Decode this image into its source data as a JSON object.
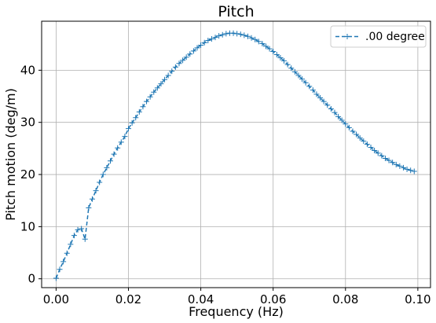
{
  "chart_data": {
    "type": "line",
    "title": "Pitch",
    "xlabel": "Frequency (Hz)",
    "ylabel": "Pitch motion (deg/m)",
    "xlim": [
      -0.004,
      0.1035
    ],
    "ylim": [
      -1.7,
      49.4
    ],
    "x_ticks": [
      0.0,
      0.02,
      0.04,
      0.06,
      0.08,
      0.1
    ],
    "x_tick_labels": [
      "0.00",
      "0.02",
      "0.04",
      "0.06",
      "0.08",
      "0.10"
    ],
    "y_ticks": [
      0,
      10,
      20,
      30,
      40
    ],
    "y_tick_labels": [
      "0",
      "10",
      "20",
      "30",
      "40"
    ],
    "grid": true,
    "legend_position": "top-right",
    "series": [
      {
        "name": ".00 degree",
        "color": "#1f77b4",
        "line_style": "dashed",
        "marker": "plus",
        "x": [
          0.0,
          0.001,
          0.002,
          0.003,
          0.004,
          0.005,
          0.006,
          0.007,
          0.008,
          0.009,
          0.01,
          0.011,
          0.012,
          0.013,
          0.014,
          0.015,
          0.016,
          0.017,
          0.018,
          0.019,
          0.02,
          0.021,
          0.022,
          0.023,
          0.024,
          0.025,
          0.026,
          0.027,
          0.028,
          0.029,
          0.03,
          0.031,
          0.032,
          0.033,
          0.034,
          0.035,
          0.036,
          0.037,
          0.038,
          0.039,
          0.04,
          0.041,
          0.042,
          0.043,
          0.044,
          0.045,
          0.046,
          0.047,
          0.048,
          0.049,
          0.05,
          0.051,
          0.052,
          0.053,
          0.054,
          0.055,
          0.056,
          0.057,
          0.058,
          0.059,
          0.06,
          0.061,
          0.062,
          0.063,
          0.064,
          0.065,
          0.066,
          0.067,
          0.068,
          0.069,
          0.07,
          0.071,
          0.072,
          0.073,
          0.074,
          0.075,
          0.076,
          0.077,
          0.078,
          0.079,
          0.08,
          0.081,
          0.082,
          0.083,
          0.084,
          0.085,
          0.086,
          0.087,
          0.088,
          0.089,
          0.09,
          0.091,
          0.092,
          0.093,
          0.094,
          0.095,
          0.096,
          0.097,
          0.098,
          0.099
        ],
        "y": [
          0.1,
          1.8,
          3.3,
          4.9,
          6.6,
          8.3,
          9.4,
          9.6,
          7.6,
          13.6,
          15.3,
          16.9,
          18.5,
          20.0,
          21.3,
          22.6,
          23.9,
          25.1,
          26.2,
          27.3,
          28.8,
          29.9,
          30.9,
          32.0,
          33.0,
          34.0,
          34.9,
          35.8,
          36.6,
          37.4,
          38.2,
          39.0,
          39.8,
          40.6,
          41.3,
          41.9,
          42.5,
          43.1,
          43.7,
          44.3,
          44.8,
          45.3,
          45.7,
          46.0,
          46.3,
          46.6,
          46.8,
          47.0,
          47.1,
          47.1,
          47.0,
          46.9,
          46.7,
          46.5,
          46.2,
          45.9,
          45.5,
          45.1,
          44.6,
          44.1,
          43.6,
          43.0,
          42.4,
          41.8,
          41.1,
          40.4,
          39.7,
          39.0,
          38.3,
          37.6,
          36.9,
          36.2,
          35.4,
          34.7,
          34.0,
          33.3,
          32.6,
          31.9,
          31.1,
          30.4,
          29.7,
          29.0,
          28.3,
          27.7,
          27.0,
          26.4,
          25.8,
          25.2,
          24.6,
          24.1,
          23.6,
          23.1,
          22.7,
          22.3,
          21.9,
          21.6,
          21.3,
          21.0,
          20.8,
          20.6
        ]
      }
    ]
  }
}
